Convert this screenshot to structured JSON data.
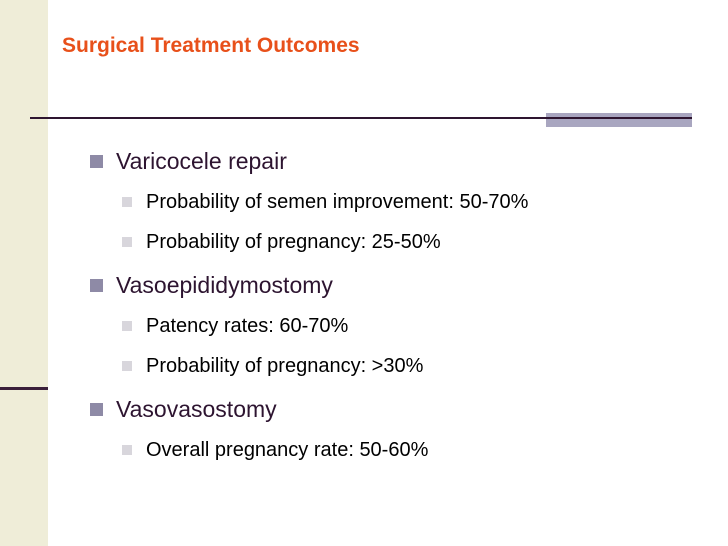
{
  "slide": {
    "title": "Surgical Treatment Outcomes",
    "colors": {
      "title": "#e8501a",
      "level1_text": "#2d1430",
      "level1_bullet": "#8e8aa6",
      "level2_bullet": "#d8d6dc",
      "left_bar": "#efedd8",
      "rule": "#2e1530",
      "rule_accent": "#a9a6c0"
    },
    "bullets": [
      {
        "text": "Varicocele repair",
        "children": [
          {
            "text": "Probability of semen improvement: 50-70%"
          },
          {
            "text": "Probability of pregnancy:  25-50%"
          }
        ]
      },
      {
        "text": "Vasoepididymostomy",
        "children": [
          {
            "text": "Patency rates:  60-70%"
          },
          {
            "text": "Probability of pregnancy:  >30%"
          }
        ]
      },
      {
        "text": "Vasovasostomy",
        "children": [
          {
            "text": "Overall pregnancy rate:  50-60%"
          }
        ]
      }
    ]
  }
}
